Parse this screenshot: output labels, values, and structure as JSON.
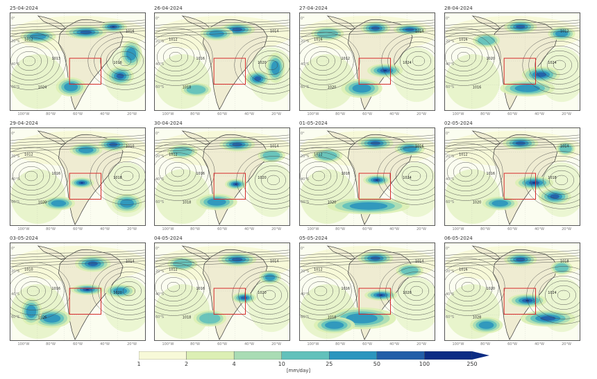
{
  "panels": [
    {
      "date": "25-04-2024",
      "isobars": [
        "1012",
        "1016",
        "1013",
        "1016",
        "1024"
      ]
    },
    {
      "date": "26-04-2024",
      "isobars": [
        "1012",
        "1014",
        "1016",
        "1020",
        "1018"
      ]
    },
    {
      "date": "27-04-2024",
      "isobars": [
        "1016",
        "1014",
        "1012",
        "1024",
        "1020"
      ]
    },
    {
      "date": "28-04-2024",
      "isobars": [
        "1016",
        "1012",
        "1020",
        "1024",
        "1016"
      ]
    },
    {
      "date": "29-04-2024",
      "isobars": [
        "1012",
        "1010",
        "1016",
        "1018",
        "1020"
      ]
    },
    {
      "date": "30-04-2024",
      "isobars": [
        "1012",
        "1014",
        "1016",
        "1020",
        "1018"
      ]
    },
    {
      "date": "01-05-2024",
      "isobars": [
        "1012",
        "1016",
        "1018",
        "1024",
        "1020"
      ]
    },
    {
      "date": "02-05-2024",
      "isobars": [
        "1012",
        "1014",
        "1016",
        "1018",
        "1020"
      ]
    },
    {
      "date": "03-05-2024",
      "isobars": [
        "1010",
        "1014",
        "1016",
        "1020",
        "1026"
      ]
    },
    {
      "date": "04-05-2024",
      "isobars": [
        "1012",
        "1014",
        "1016",
        "1020",
        "1018"
      ]
    },
    {
      "date": "05-05-2024",
      "isobars": [
        "1012",
        "1014",
        "1016",
        "1020",
        "1018"
      ]
    },
    {
      "date": "06-05-2024",
      "isobars": [
        "1016",
        "1018",
        "1020",
        "1024",
        "1028"
      ]
    }
  ],
  "axes": {
    "lon_labels": [
      "100°W",
      "80°W",
      "60°W",
      "40°W",
      "20°W"
    ],
    "lat_labels": [
      "0°",
      "20°S",
      "40°S",
      "60°S"
    ]
  },
  "colorbar": {
    "ticks": [
      "1",
      "2",
      "4",
      "10",
      "25",
      "50",
      "100",
      "250"
    ],
    "colors": [
      "#f7f9d8",
      "#dcefb4",
      "#a9dcb4",
      "#62c1bb",
      "#2b95be",
      "#225ea8",
      "#0c2c84"
    ],
    "unit": "[mm/day]"
  }
}
